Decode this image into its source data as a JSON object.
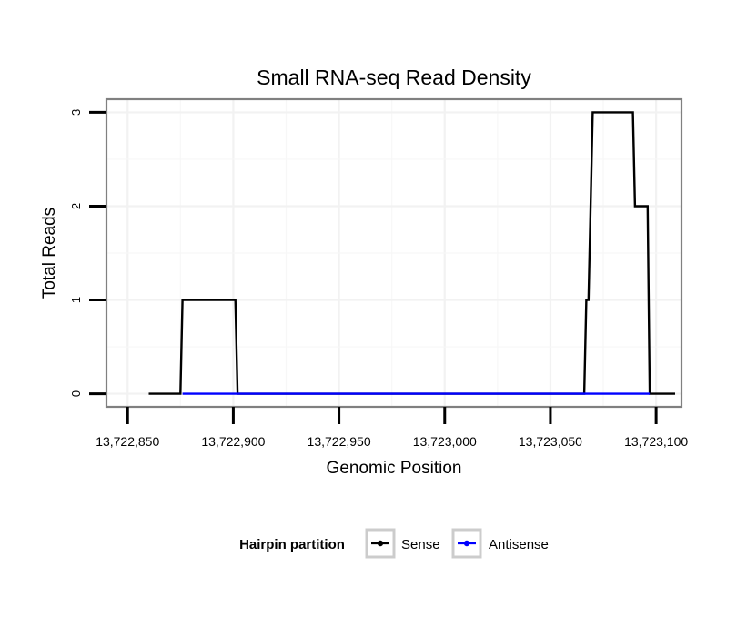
{
  "chart_data": {
    "type": "line",
    "title": "Small RNA-seq Read Density",
    "xlabel": "Genomic Position",
    "ylabel": "Total Reads",
    "xlim": [
      13722840,
      13723112
    ],
    "ylim": [
      -0.14,
      3.14
    ],
    "x_ticks": [
      13722850,
      13722900,
      13722950,
      13723000,
      13723050,
      13723100
    ],
    "x_tick_labels": [
      "13,722,850",
      "13,722,900",
      "13,722,950",
      "13,723,000",
      "13,723,050",
      "13,723,100"
    ],
    "y_ticks": [
      0,
      1,
      2,
      3
    ],
    "y_tick_labels": [
      "0",
      "1",
      "2",
      "3"
    ],
    "grid": true,
    "legend_title": "Hairpin partition",
    "legend_position": "bottom",
    "series": [
      {
        "name": "Sense",
        "color": "#000000",
        "points": [
          [
            13722860,
            0
          ],
          [
            13722875,
            0
          ],
          [
            13722876,
            1
          ],
          [
            13722901,
            1
          ],
          [
            13722902,
            0
          ],
          [
            13723066,
            0
          ],
          [
            13723067,
            1
          ],
          [
            13723068,
            1
          ],
          [
            13723070,
            3
          ],
          [
            13723089,
            3
          ],
          [
            13723090,
            2
          ],
          [
            13723096,
            2
          ],
          [
            13723097,
            0
          ],
          [
            13723109,
            0
          ]
        ]
      },
      {
        "name": "Antisense",
        "color": "#0000ff",
        "points": [
          [
            13722876,
            0
          ],
          [
            13722901,
            0
          ],
          [
            13723067,
            0
          ],
          [
            13723097,
            0
          ]
        ]
      }
    ]
  }
}
